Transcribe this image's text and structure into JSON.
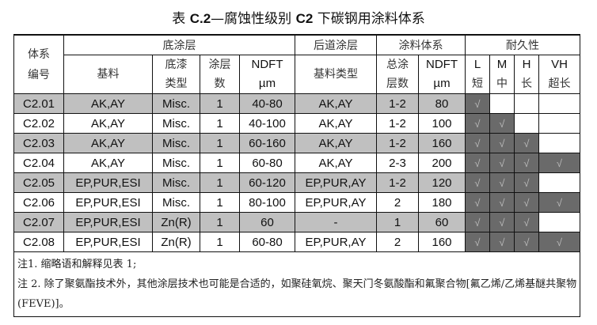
{
  "title": {
    "prefix": "表 ",
    "code": "C.2",
    "dash": "—腐蚀性级别 ",
    "level": "C2",
    "suffix": " 下碳钢用涂料体系"
  },
  "header": {
    "system_no": "体系编号",
    "primer": "底涂层",
    "topcoat": "后道涂层",
    "system": "涂料体系",
    "durability": "耐久性",
    "binder": "基料",
    "primer_type_1": "底漆",
    "primer_type_2": "类型",
    "coats_1": "涂层",
    "coats_2": "数",
    "ndft": "NDFT",
    "um": "µm",
    "binder_type": "基料类型",
    "total_1": "总涂",
    "total_2": "层数",
    "L": "L",
    "L_cn": "短",
    "M": "M",
    "M_cn": "中",
    "H": "H",
    "H_cn": "长",
    "VH": "VH",
    "VH_cn": "超长"
  },
  "check_mark": "√",
  "colors": {
    "row_shade": "#c0c0c0",
    "check_cell": "#6a6a6a"
  },
  "rows": [
    {
      "id": "C2.01",
      "binder": "AK,AY",
      "primer_type": "Misc.",
      "coats": "1",
      "ndft": "40-80",
      "top_binder": "AK,AY",
      "total": "1-2",
      "sys_ndft": "80",
      "dur": [
        true,
        false,
        false,
        false
      ]
    },
    {
      "id": "C2.02",
      "binder": "AK,AY",
      "primer_type": "Misc.",
      "coats": "1",
      "ndft": "40-100",
      "top_binder": "AK,AY",
      "total": "1-2",
      "sys_ndft": "100",
      "dur": [
        true,
        true,
        false,
        false
      ]
    },
    {
      "id": "C2.03",
      "binder": "AK,AY",
      "primer_type": "Misc.",
      "coats": "1",
      "ndft": "60-160",
      "top_binder": "AK,AY",
      "total": "1-2",
      "sys_ndft": "160",
      "dur": [
        true,
        true,
        true,
        false
      ]
    },
    {
      "id": "C2.04",
      "binder": "AK,AY",
      "primer_type": "Misc.",
      "coats": "1",
      "ndft": "60-80",
      "top_binder": "AK,AY",
      "total": "2-3",
      "sys_ndft": "200",
      "dur": [
        true,
        true,
        true,
        true
      ]
    },
    {
      "id": "C2.05",
      "binder": "EP,PUR,ESI",
      "primer_type": "Misc.",
      "coats": "1",
      "ndft": "60-120",
      "top_binder": "EP,PUR,AY",
      "total": "1-2",
      "sys_ndft": "120",
      "dur": [
        true,
        true,
        true,
        false
      ]
    },
    {
      "id": "C2.06",
      "binder": "EP,PUR,ESI",
      "primer_type": "Misc.",
      "coats": "1",
      "ndft": "80-100",
      "top_binder": "EP,PUR,AY",
      "total": "2",
      "sys_ndft": "180",
      "dur": [
        true,
        true,
        true,
        true
      ]
    },
    {
      "id": "C2.07",
      "binder": "EP,PUR,ESI",
      "primer_type": "Zn(R)",
      "coats": "1",
      "ndft": "60",
      "top_binder": "-",
      "total": "1",
      "sys_ndft": "60",
      "dur": [
        true,
        true,
        true,
        false
      ]
    },
    {
      "id": "C2.08",
      "binder": "EP,PUR,ESI",
      "primer_type": "Zn(R)",
      "coats": "1",
      "ndft": "60-80",
      "top_binder": "EP,PUR,AY",
      "total": "2",
      "sys_ndft": "160",
      "dur": [
        true,
        true,
        true,
        true
      ]
    }
  ],
  "notes": [
    "注1. 缩略语和解释见表 1;",
    "注 2. 除了聚氨酯技术外，其他涂层技术也可能是合适的，如聚硅氧烷、聚天门冬氨酸酯和氟聚合物[氟乙烯/乙烯基醚共聚物(FEVE)]。"
  ]
}
